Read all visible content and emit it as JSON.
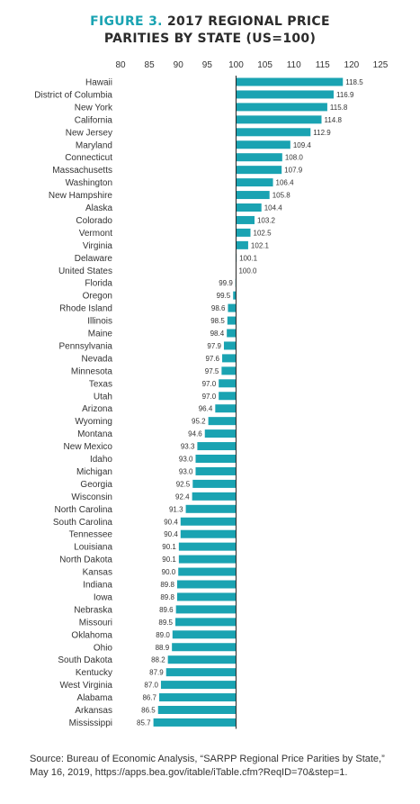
{
  "title_prefix": "FIGURE 3.",
  "title_line1_rest": "2017 REGIONAL PRICE",
  "title_line2": "PARITIES BY STATE (US=100)",
  "source_line1": "Source: Bureau of Economic Analysis, “SARPP Regional Price Parities by State,”",
  "source_line2": "May 16, 2019, https://apps.bea.gov/itable/iTable.cfm?ReqID=70&step=1.",
  "colors": {
    "bar": "#1aa3b2",
    "title_accent": "#1aa3b2",
    "axis": "#222222"
  },
  "chart_data": {
    "type": "bar",
    "orientation": "horizontal",
    "baseline": 100,
    "xlim": [
      80,
      125
    ],
    "xticks": [
      80,
      85,
      90,
      95,
      100,
      105,
      110,
      115,
      120,
      125
    ],
    "categories": [
      "Hawaii",
      "District of Columbia",
      "New York",
      "California",
      "New Jersey",
      "Maryland",
      "Connecticut",
      "Massachusetts",
      "Washington",
      "New Hampshire",
      "Alaska",
      "Colorado",
      "Vermont",
      "Virginia",
      "Delaware",
      "United States",
      "Florida",
      "Oregon",
      "Rhode Island",
      "Illinois",
      "Maine",
      "Pennsylvania",
      "Nevada",
      "Minnesota",
      "Texas",
      "Utah",
      "Arizona",
      "Wyoming",
      "Montana",
      "New Mexico",
      "Idaho",
      "Michigan",
      "Georgia",
      "Wisconsin",
      "North Carolina",
      "South Carolina",
      "Tennessee",
      "Louisiana",
      "North Dakota",
      "Kansas",
      "Indiana",
      "Iowa",
      "Nebraska",
      "Missouri",
      "Oklahoma",
      "Ohio",
      "South Dakota",
      "Kentucky",
      "West Virginia",
      "Alabama",
      "Arkansas",
      "Mississippi"
    ],
    "values": [
      118.5,
      116.9,
      115.8,
      114.8,
      112.9,
      109.4,
      108.0,
      107.9,
      106.4,
      105.8,
      104.4,
      103.2,
      102.5,
      102.1,
      100.1,
      100.0,
      99.9,
      99.5,
      98.6,
      98.5,
      98.4,
      97.9,
      97.6,
      97.5,
      97.0,
      97.0,
      96.4,
      95.2,
      94.6,
      93.3,
      93.0,
      93.0,
      92.5,
      92.4,
      91.3,
      90.4,
      90.4,
      90.1,
      90.1,
      90.0,
      89.8,
      89.8,
      89.6,
      89.5,
      89.0,
      88.9,
      88.2,
      87.9,
      87.0,
      86.7,
      86.5,
      85.7
    ],
    "labels": [
      "118.5",
      "116.9",
      "115.8",
      "114.8",
      "112.9",
      "109.4",
      "108.0",
      "107.9",
      "106.4",
      "105.8",
      "104.4",
      "103.2",
      "102.5",
      "102.1",
      "100.1",
      "100.0",
      "99.9",
      "99.5",
      "98.6",
      "98.5",
      "98.4",
      "97.9",
      "97.6",
      "97.5",
      "97.0",
      "97.0",
      "96.4",
      "95.2",
      "94.6",
      "93.3",
      "93.0",
      "93.0",
      "92.5",
      "92.4",
      "91.3",
      "90.4",
      "90.4",
      "90.1",
      "90.1",
      "90.0",
      "89.8",
      "89.8",
      "89.6",
      "89.5",
      "89.0",
      "88.9",
      "88.2",
      "87.9",
      "87.0",
      "86.7",
      "86.5",
      "85.7"
    ]
  }
}
